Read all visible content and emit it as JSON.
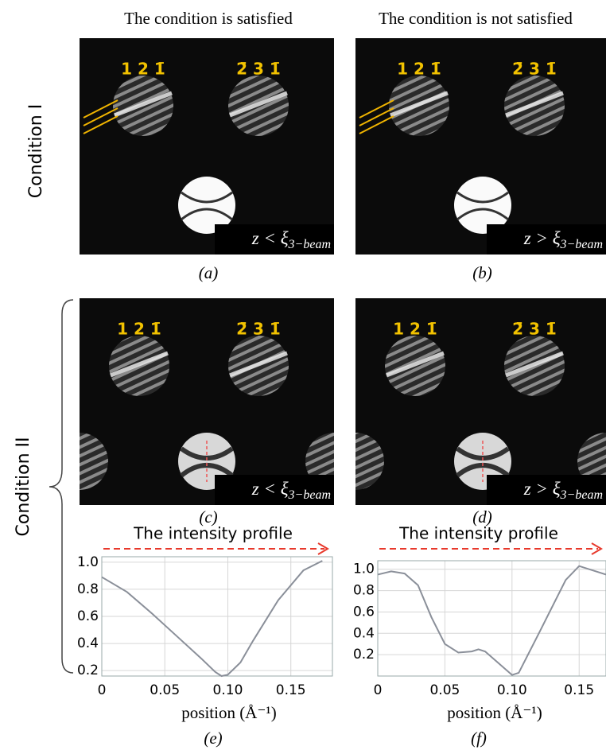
{
  "header": {
    "left": "The condition is satisfied",
    "right": "The condition is not satisfied"
  },
  "row_labels": [
    "Condition I",
    "Condition II"
  ],
  "panels": [
    {
      "label": "(a)",
      "spots": [
        "1 2 1̄",
        "2̄ 3 1̄"
      ],
      "note": "z < ξ",
      "note_sub": "3−beam"
    },
    {
      "label": "(b)",
      "spots": [
        "1 2 1̄",
        "2̄ 3 1̄"
      ],
      "note": "z > ξ",
      "note_sub": "3−beam"
    },
    {
      "label": "(c)",
      "spots": [
        "1 2 1̄",
        "2̄ 3 1̄"
      ],
      "note": "z < ξ",
      "note_sub": "3−beam"
    },
    {
      "label": "(d)",
      "spots": [
        "1 2 1̄",
        "2̄ 3 1̄"
      ],
      "note": "z > ξ",
      "note_sub": "3−beam"
    }
  ],
  "chart_data": [
    {
      "type": "line",
      "title": "The intensity profile",
      "x_label": "position (Å⁻¹)",
      "panel_label": "(e)",
      "color": "#8a8f99",
      "x": [
        0,
        0.02,
        0.04,
        0.06,
        0.08,
        0.09,
        0.095,
        0.1,
        0.11,
        0.12,
        0.14,
        0.16,
        0.175
      ],
      "values": [
        0.89,
        0.78,
        0.62,
        0.45,
        0.28,
        0.19,
        0.16,
        0.17,
        0.26,
        0.42,
        0.72,
        0.94,
        1.01
      ],
      "xlim": [
        0,
        0.183
      ],
      "ylim": [
        0.16,
        1.04
      ],
      "xticks": [
        0,
        0.05,
        {
          "value": 0.1,
          "label": "0.10"
        },
        0.15
      ],
      "yticks": [
        0.2,
        0.4,
        0.6,
        0.8,
        {
          "value": 1,
          "label": "1.0"
        }
      ],
      "grid": true
    },
    {
      "type": "line",
      "title": "The intensity profile",
      "x_label": "position (Å⁻¹)",
      "panel_label": "(f)",
      "color": "#8a8f99",
      "x": [
        0,
        0.01,
        0.02,
        0.03,
        0.04,
        0.05,
        0.06,
        0.07,
        0.075,
        0.08,
        0.09,
        0.1,
        0.105,
        0.12,
        0.14,
        0.15,
        0.17
      ],
      "values": [
        0.95,
        0.98,
        0.96,
        0.85,
        0.55,
        0.3,
        0.22,
        0.23,
        0.25,
        0.23,
        0.12,
        0.01,
        0.03,
        0.4,
        0.9,
        1.03,
        0.95
      ],
      "xlim": [
        0,
        0.17
      ],
      "ylim": [
        0,
        1.08
      ],
      "xticks": [
        0,
        0.05,
        {
          "value": 0.1,
          "label": "0.10"
        },
        0.15
      ],
      "yticks": [
        0.2,
        0.4,
        0.6,
        0.8,
        {
          "value": 1,
          "label": "1.0"
        }
      ],
      "grid": true
    }
  ]
}
